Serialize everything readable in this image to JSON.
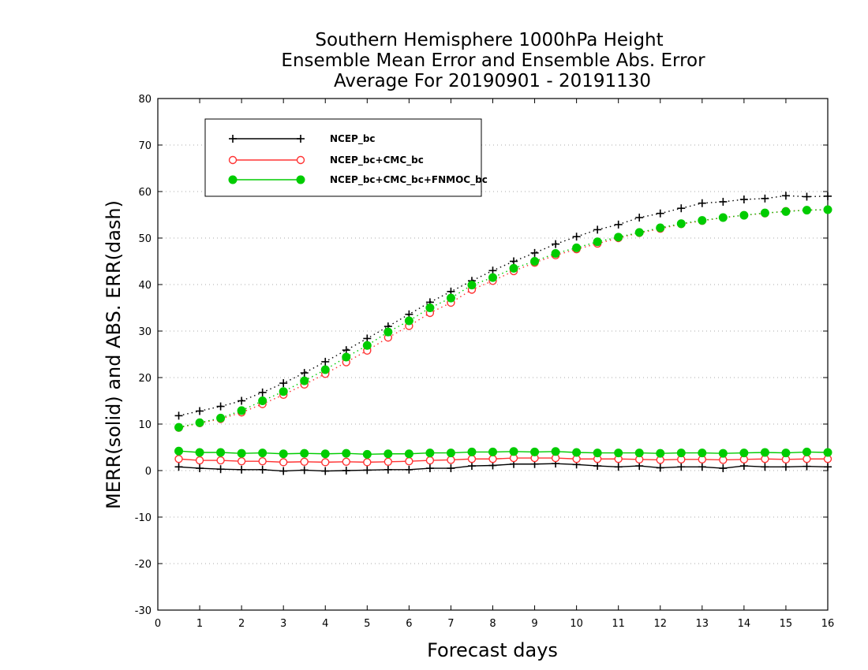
{
  "colors": {
    "ncep": "#000000",
    "ncep_cmc": "#ff3333",
    "ncep_cmc_fnmoc": "#00cc00",
    "grid": "#aaaaaa"
  },
  "chart_data": {
    "type": "line",
    "title": [
      "Southern Hemisphere 1000hPa Height",
      "Ensemble Mean Error and Ensemble Abs. Error",
      "Average For 20190901 - 20191130"
    ],
    "xlabel": "Forecast days",
    "ylabel": "MERR(solid) and ABS. ERR(dash)",
    "xlim": [
      0,
      16
    ],
    "ylim": [
      -30,
      80
    ],
    "xticks": [
      0,
      1,
      2,
      3,
      4,
      5,
      6,
      7,
      8,
      9,
      10,
      11,
      12,
      13,
      14,
      15,
      16
    ],
    "yticks": [
      -30,
      -20,
      -10,
      0,
      10,
      20,
      30,
      40,
      50,
      60,
      70,
      80
    ],
    "grid": true,
    "legend_position": "top-left",
    "x": [
      0.5,
      1,
      1.5,
      2,
      2.5,
      3,
      3.5,
      4,
      4.5,
      5,
      5.5,
      6,
      6.5,
      7,
      7.5,
      8,
      8.5,
      9,
      9.5,
      10,
      10.5,
      11,
      11.5,
      12,
      12.5,
      13,
      13.5,
      14,
      14.5,
      15,
      15.5,
      16
    ],
    "series": [
      {
        "name": "NCEP_bc",
        "color": "#000000",
        "marker": "plus",
        "merr": [
          0.8,
          0.5,
          0.3,
          0.2,
          0.2,
          -0.1,
          0.1,
          -0.1,
          0.0,
          0.1,
          0.2,
          0.2,
          0.5,
          0.5,
          1.0,
          1.1,
          1.4,
          1.4,
          1.5,
          1.3,
          1.0,
          0.8,
          1.0,
          0.6,
          0.8,
          0.8,
          0.5,
          1.0,
          0.8,
          0.8,
          0.9,
          0.8
        ],
        "abs_err": [
          11.8,
          12.8,
          13.8,
          15.0,
          16.8,
          18.8,
          21.0,
          23.4,
          25.9,
          28.4,
          31.0,
          33.6,
          36.2,
          38.5,
          40.8,
          43.0,
          45.0,
          46.8,
          48.7,
          50.3,
          51.8,
          52.9,
          54.4,
          55.3,
          56.4,
          57.5,
          57.8,
          58.3,
          58.5,
          59.1,
          58.9,
          59.0
        ]
      },
      {
        "name": "NCEP_bc+CMC_bc",
        "color": "#ff3333",
        "marker": "circle-open",
        "merr": [
          2.5,
          2.2,
          2.2,
          2.0,
          2.0,
          1.8,
          1.9,
          1.8,
          1.9,
          1.8,
          1.9,
          2.0,
          2.2,
          2.3,
          2.5,
          2.5,
          2.7,
          2.7,
          2.7,
          2.5,
          2.5,
          2.5,
          2.4,
          2.3,
          2.4,
          2.4,
          2.3,
          2.4,
          2.5,
          2.4,
          2.5,
          2.5
        ],
        "abs_err": [
          9.2,
          10.2,
          11.1,
          12.5,
          14.3,
          16.3,
          18.5,
          20.8,
          23.3,
          25.8,
          28.6,
          31.1,
          33.9,
          36.1,
          38.9,
          40.8,
          42.9,
          44.7,
          46.3,
          47.6,
          48.8,
          50.0,
          51.1,
          52.0,
          53.0,
          53.7,
          54.4,
          54.9,
          55.3,
          55.8,
          56.0,
          56.1
        ]
      },
      {
        "name": "NCEP_bc+CMC_bc+FNMOC_bc",
        "color": "#00cc00",
        "marker": "circle-filled",
        "merr": [
          4.2,
          3.9,
          3.9,
          3.7,
          3.8,
          3.6,
          3.7,
          3.6,
          3.7,
          3.5,
          3.6,
          3.6,
          3.8,
          3.8,
          4.0,
          4.0,
          4.1,
          4.0,
          4.1,
          3.9,
          3.8,
          3.8,
          3.8,
          3.7,
          3.8,
          3.8,
          3.7,
          3.8,
          3.9,
          3.8,
          4.0,
          3.9
        ],
        "abs_err": [
          9.3,
          10.3,
          11.3,
          12.9,
          15.0,
          17.0,
          19.3,
          21.7,
          24.4,
          26.9,
          29.8,
          32.2,
          35.0,
          37.1,
          39.9,
          41.5,
          43.5,
          45.0,
          46.7,
          47.9,
          49.2,
          50.2,
          51.2,
          52.2,
          53.1,
          53.8,
          54.4,
          54.9,
          55.4,
          55.7,
          56.0,
          56.1
        ]
      }
    ]
  }
}
